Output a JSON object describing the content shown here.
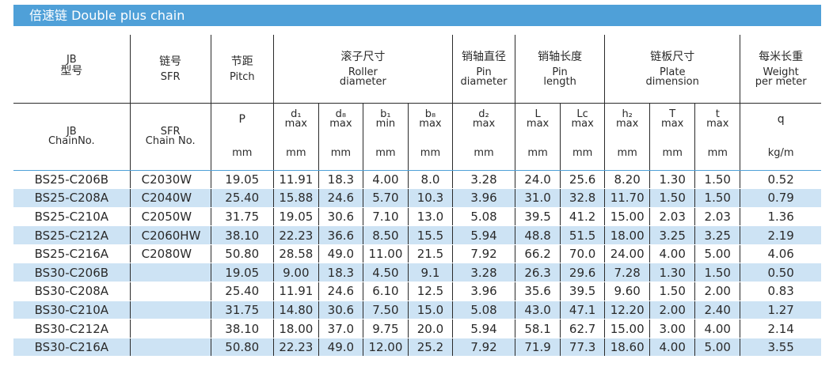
{
  "title": "倍速链   Double plus chain",
  "headers": {
    "jb": {
      "cn": "JB",
      "cn2": "型号",
      "en1": "JB",
      "en2": "ChainNo."
    },
    "sfr": {
      "cn": "链号",
      "en": "SFR",
      "en1": "SFR",
      "en2": "Chain No."
    },
    "pitch": {
      "cn": "节距",
      "en": "Pitch",
      "sym": "P",
      "unit": "mm"
    },
    "roller": {
      "cn": "滚子尺寸",
      "en1": "Roller",
      "en2": "diameter"
    },
    "pin_dia": {
      "cn": "销轴直径",
      "en1": "Pin",
      "en2": "diameter"
    },
    "pin_len": {
      "cn": "销轴长度",
      "en1": "Pin",
      "en2": "length"
    },
    "plate": {
      "cn": "链板尺寸",
      "en1": "Plate",
      "en2": "dimension"
    },
    "weight": {
      "cn": "每米长重",
      "en1": "Weight",
      "en2": "per meter",
      "sym": "q",
      "unit": "kg/m"
    },
    "sub": [
      {
        "sym": "d₁",
        "lim": "max"
      },
      {
        "sym": "d₈",
        "lim": "max"
      },
      {
        "sym": "b₁",
        "lim": "min"
      },
      {
        "sym": "b₈",
        "lim": "max"
      },
      {
        "sym": "d₂",
        "lim": "max"
      },
      {
        "sym": "L",
        "lim": "max"
      },
      {
        "sym": "Lc",
        "lim": "max"
      },
      {
        "sym": "h₂",
        "lim": "max"
      },
      {
        "sym": "T",
        "lim": "max"
      },
      {
        "sym": "t",
        "lim": "max"
      }
    ],
    "unit_mm": "mm"
  },
  "rows": [
    [
      "BS25-C206B",
      "C2030W",
      "19.05",
      "11.91",
      "18.3",
      "4.00",
      "8.0",
      "3.28",
      "24.0",
      "25.6",
      "8.20",
      "1.30",
      "1.50",
      "0.52"
    ],
    [
      "BS25-C208A",
      "C2040W",
      "25.40",
      "15.88",
      "24.6",
      "5.70",
      "10.3",
      "3.96",
      "31.0",
      "32.8",
      "11.70",
      "1.50",
      "1.50",
      "0.79"
    ],
    [
      "BS25-C210A",
      "C2050W",
      "31.75",
      "19.05",
      "30.6",
      "7.10",
      "13.0",
      "5.08",
      "39.5",
      "41.2",
      "15.00",
      "2.03",
      "2.03",
      "1.36"
    ],
    [
      "BS25-C212A",
      "C2060HW",
      "38.10",
      "22.23",
      "36.6",
      "8.50",
      "15.5",
      "5.94",
      "48.8",
      "51.5",
      "18.00",
      "3.25",
      "3.25",
      "2.19"
    ],
    [
      "BS25-C216A",
      "C2080W",
      "50.80",
      "28.58",
      "49.0",
      "11.00",
      "21.5",
      "7.92",
      "66.2",
      "70.0",
      "24.00",
      "4.00",
      "5.00",
      "4.06"
    ],
    [
      "BS30-C206B",
      "",
      "19.05",
      "9.00",
      "18.3",
      "4.50",
      "9.1",
      "3.28",
      "26.3",
      "29.6",
      "7.28",
      "1.30",
      "1.50",
      "0.50"
    ],
    [
      "BS30-C208A",
      "",
      "25.40",
      "11.91",
      "24.6",
      "6.10",
      "12.5",
      "3.96",
      "35.6",
      "39.5",
      "9.60",
      "1.50",
      "2.00",
      "0.83"
    ],
    [
      "BS30-C210A",
      "",
      "31.75",
      "14.80",
      "30.6",
      "7.50",
      "15.0",
      "5.08",
      "43.0",
      "47.1",
      "12.20",
      "2.00",
      "2.40",
      "1.27"
    ],
    [
      "BS30-C212A",
      "",
      "38.10",
      "18.00",
      "37.0",
      "9.75",
      "20.0",
      "5.94",
      "58.1",
      "62.7",
      "15.00",
      "3.00",
      "4.00",
      "2.14"
    ],
    [
      "BS30-C216A",
      "",
      "50.80",
      "22.23",
      "49.0",
      "12.00",
      "25.2",
      "7.92",
      "71.9",
      "77.3",
      "18.60",
      "4.00",
      "5.00",
      "3.55"
    ]
  ],
  "colors": {
    "accent": "#4fa0d8",
    "stripe": "#cde3f4",
    "text": "#2a2a2a"
  }
}
